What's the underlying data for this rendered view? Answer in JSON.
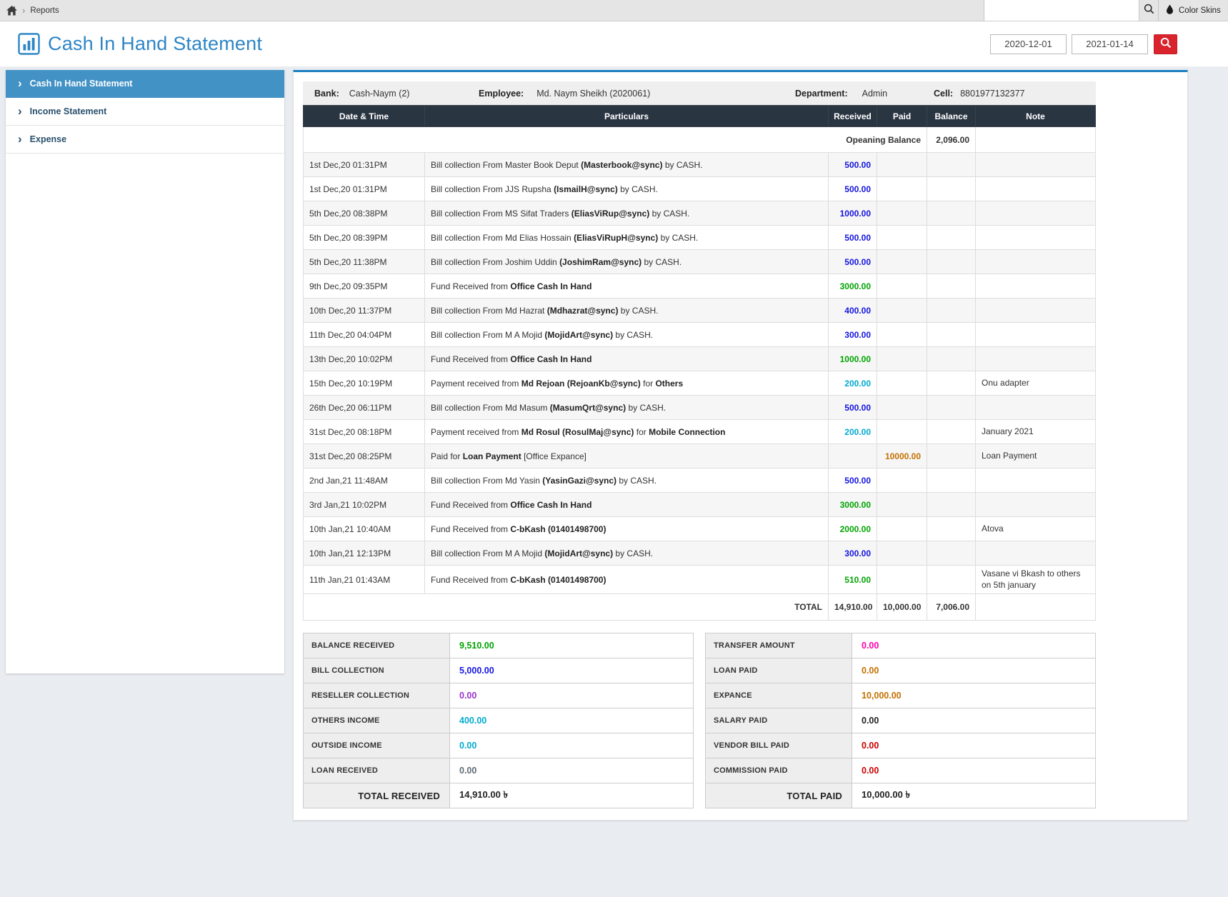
{
  "palette": {
    "accent": "#2e86c5",
    "sidebar_active": "#4292c6",
    "table_header_bg": "#2a3542",
    "button_red": "#d9232d",
    "blue": "#1414e0",
    "green": "#00a400",
    "cyan": "#00aacf",
    "orange": "#c47000",
    "magenta": "#ff00aa",
    "purple": "#9933cc",
    "red": "#cc0000",
    "total_red": "#ff0000",
    "muted": "#5e6b75",
    "dark": "#222222"
  },
  "topbar": {
    "breadcrumb_home": "home",
    "breadcrumb": "Reports",
    "search_placeholder": "",
    "search_value": "",
    "color_skins": "Color Skins"
  },
  "header": {
    "title": "Cash In Hand Statement",
    "date_from": "2020-12-01",
    "date_to": "2021-01-14"
  },
  "sidebar": {
    "items": [
      {
        "label": "Cash In Hand Statement",
        "active": true
      },
      {
        "label": "Income Statement",
        "active": false
      },
      {
        "label": "Expense",
        "active": false
      }
    ]
  },
  "bank_info": {
    "bank_label": "Bank:",
    "bank": "Cash-Naym (2)",
    "employee_label": "Employee:",
    "employee": "Md. Naym Sheikh (2020061)",
    "department_label": "Department:",
    "department": "Admin",
    "cell_label": "Cell:",
    "cell": "8801977132377"
  },
  "table": {
    "headers": [
      "Date & Time",
      "Particulars",
      "Received",
      "Paid",
      "Balance",
      "Note"
    ],
    "opening": {
      "label": "Opeaning Balance",
      "balance": "2,096.00"
    },
    "rows": [
      {
        "date": "1st Dec,20 01:31PM",
        "parts": [
          {
            "t": "Bill collection From Master Book Deput ",
            "b": false
          },
          {
            "t": "(Masterbook@sync)",
            "b": true
          },
          {
            "t": " by CASH.",
            "b": false
          }
        ],
        "received": "500.00",
        "rcolor": "blue",
        "paid": "",
        "note": ""
      },
      {
        "date": "1st Dec,20 01:31PM",
        "parts": [
          {
            "t": "Bill collection From JJS Rupsha ",
            "b": false
          },
          {
            "t": "(IsmailH@sync)",
            "b": true
          },
          {
            "t": " by CASH.",
            "b": false
          }
        ],
        "received": "500.00",
        "rcolor": "blue",
        "paid": "",
        "note": ""
      },
      {
        "date": "5th Dec,20 08:38PM",
        "parts": [
          {
            "t": "Bill collection From MS Sifat Traders ",
            "b": false
          },
          {
            "t": "(EliasViRup@sync)",
            "b": true
          },
          {
            "t": " by CASH.",
            "b": false
          }
        ],
        "received": "1000.00",
        "rcolor": "blue",
        "paid": "",
        "note": ""
      },
      {
        "date": "5th Dec,20 08:39PM",
        "parts": [
          {
            "t": "Bill collection From Md Elias Hossain ",
            "b": false
          },
          {
            "t": "(EliasViRupH@sync)",
            "b": true
          },
          {
            "t": " by CASH.",
            "b": false
          }
        ],
        "received": "500.00",
        "rcolor": "blue",
        "paid": "",
        "note": ""
      },
      {
        "date": "5th Dec,20 11:38PM",
        "parts": [
          {
            "t": "Bill collection From Joshim Uddin ",
            "b": false
          },
          {
            "t": "(JoshimRam@sync)",
            "b": true
          },
          {
            "t": " by CASH.",
            "b": false
          }
        ],
        "received": "500.00",
        "rcolor": "blue",
        "paid": "",
        "note": ""
      },
      {
        "date": "9th Dec,20 09:35PM",
        "parts": [
          {
            "t": "Fund Received from ",
            "b": false
          },
          {
            "t": "Office Cash In Hand",
            "b": true
          }
        ],
        "received": "3000.00",
        "rcolor": "green",
        "paid": "",
        "note": ""
      },
      {
        "date": "10th Dec,20 11:37PM",
        "parts": [
          {
            "t": "Bill collection From Md Hazrat ",
            "b": false
          },
          {
            "t": "(Mdhazrat@sync)",
            "b": true
          },
          {
            "t": " by CASH.",
            "b": false
          }
        ],
        "received": "400.00",
        "rcolor": "blue",
        "paid": "",
        "note": ""
      },
      {
        "date": "11th Dec,20 04:04PM",
        "parts": [
          {
            "t": "Bill collection From M A Mojid ",
            "b": false
          },
          {
            "t": "(MojidArt@sync)",
            "b": true
          },
          {
            "t": " by CASH.",
            "b": false
          }
        ],
        "received": "300.00",
        "rcolor": "blue",
        "paid": "",
        "note": ""
      },
      {
        "date": "13th Dec,20 10:02PM",
        "parts": [
          {
            "t": "Fund Received from ",
            "b": false
          },
          {
            "t": "Office Cash In Hand",
            "b": true
          }
        ],
        "received": "1000.00",
        "rcolor": "green",
        "paid": "",
        "note": ""
      },
      {
        "date": "15th Dec,20 10:19PM",
        "parts": [
          {
            "t": "Payment received from ",
            "b": false
          },
          {
            "t": "Md Rejoan (RejoanKb@sync)",
            "b": true
          },
          {
            "t": " for ",
            "b": false
          },
          {
            "t": "Others",
            "b": true
          }
        ],
        "received": "200.00",
        "rcolor": "cyan",
        "paid": "",
        "note": "Onu adapter"
      },
      {
        "date": "26th Dec,20 06:11PM",
        "parts": [
          {
            "t": "Bill collection From Md Masum ",
            "b": false
          },
          {
            "t": "(MasumQrt@sync)",
            "b": true
          },
          {
            "t": " by CASH.",
            "b": false
          }
        ],
        "received": "500.00",
        "rcolor": "blue",
        "paid": "",
        "note": ""
      },
      {
        "date": "31st Dec,20 08:18PM",
        "parts": [
          {
            "t": "Payment received from ",
            "b": false
          },
          {
            "t": "Md Rosul (RosulMaj@sync)",
            "b": true
          },
          {
            "t": " for ",
            "b": false
          },
          {
            "t": "Mobile Connection",
            "b": true
          }
        ],
        "received": "200.00",
        "rcolor": "cyan",
        "paid": "",
        "note": "January 2021"
      },
      {
        "date": "31st Dec,20 08:25PM",
        "parts": [
          {
            "t": "Paid for ",
            "b": false
          },
          {
            "t": "Loan Payment",
            "b": true
          },
          {
            "t": " [Office Expance]",
            "b": false
          }
        ],
        "received": "",
        "rcolor": "blue",
        "paid": "10000.00",
        "pcolor": "orange",
        "note": "Loan Payment"
      },
      {
        "date": "2nd Jan,21 11:48AM",
        "parts": [
          {
            "t": "Bill collection From Md Yasin ",
            "b": false
          },
          {
            "t": "(YasinGazi@sync)",
            "b": true
          },
          {
            "t": " by CASH.",
            "b": false
          }
        ],
        "received": "500.00",
        "rcolor": "blue",
        "paid": "",
        "note": ""
      },
      {
        "date": "3rd Jan,21 10:02PM",
        "parts": [
          {
            "t": "Fund Received from ",
            "b": false
          },
          {
            "t": "Office Cash In Hand",
            "b": true
          }
        ],
        "received": "3000.00",
        "rcolor": "green",
        "paid": "",
        "note": ""
      },
      {
        "date": "10th Jan,21 10:40AM",
        "parts": [
          {
            "t": "Fund Received from ",
            "b": false
          },
          {
            "t": "C-bKash (01401498700)",
            "b": true
          }
        ],
        "received": "2000.00",
        "rcolor": "green",
        "paid": "",
        "note": "Atova"
      },
      {
        "date": "10th Jan,21 12:13PM",
        "parts": [
          {
            "t": "Bill collection From M A Mojid ",
            "b": false
          },
          {
            "t": "(MojidArt@sync)",
            "b": true
          },
          {
            "t": " by CASH.",
            "b": false
          }
        ],
        "received": "300.00",
        "rcolor": "blue",
        "paid": "",
        "note": ""
      },
      {
        "date": "11th Jan,21 01:43AM",
        "parts": [
          {
            "t": "Fund Received from ",
            "b": false
          },
          {
            "t": "C-bKash (01401498700)",
            "b": true
          }
        ],
        "received": "510.00",
        "rcolor": "green",
        "paid": "",
        "note": "Vasane vi Bkash to others on 5th january"
      }
    ],
    "total": {
      "label": "TOTAL",
      "received": "14,910.00",
      "paid": "10,000.00",
      "balance": "7,006.00"
    }
  },
  "received_summary": {
    "rows": [
      {
        "label": "BALANCE RECEIVED",
        "value": "9,510.00",
        "color": "green"
      },
      {
        "label": "BILL COLLECTION",
        "value": "5,000.00",
        "color": "blue"
      },
      {
        "label": "RESELLER COLLECTION",
        "value": "0.00",
        "color": "purple"
      },
      {
        "label": "OTHERS INCOME",
        "value": "400.00",
        "color": "cyan"
      },
      {
        "label": "OUTSIDE INCOME",
        "value": "0.00",
        "color": "cyan"
      },
      {
        "label": "LOAN RECEIVED",
        "value": "0.00",
        "color": "muted"
      }
    ],
    "total_label": "TOTAL RECEIVED",
    "total_value": "14,910.00 ৳"
  },
  "paid_summary": {
    "rows": [
      {
        "label": "TRANSFER AMOUNT",
        "value": "0.00",
        "color": "magenta"
      },
      {
        "label": "LOAN PAID",
        "value": "0.00",
        "color": "orange"
      },
      {
        "label": "EXPANCE",
        "value": "10,000.00",
        "color": "orange"
      },
      {
        "label": "SALARY PAID",
        "value": "0.00",
        "color": "dark"
      },
      {
        "label": "VENDOR BILL PAID",
        "value": "0.00",
        "color": "red"
      },
      {
        "label": "COMMISSION PAID",
        "value": "0.00",
        "color": "red"
      }
    ],
    "total_label": "TOTAL PAID",
    "total_value": "10,000.00 ৳"
  }
}
